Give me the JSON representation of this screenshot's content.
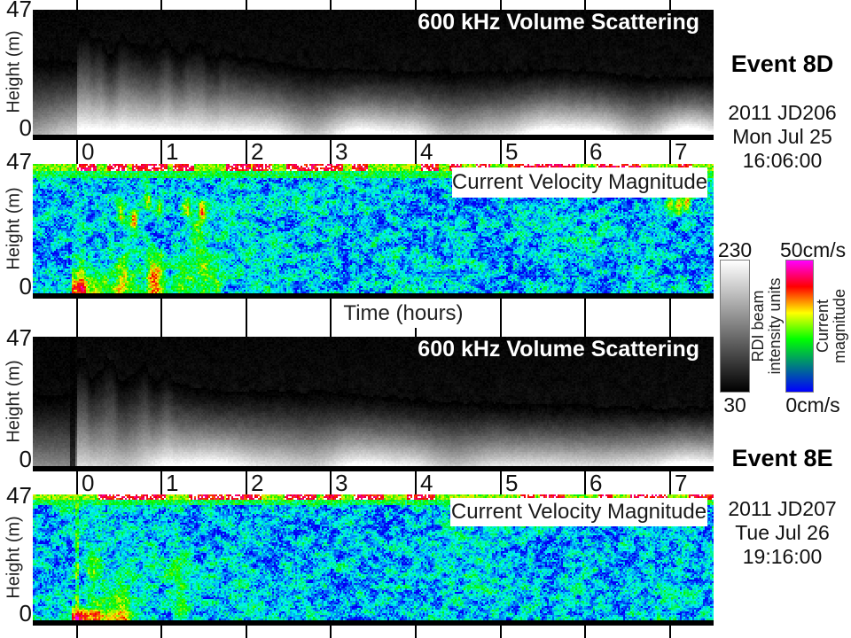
{
  "figure": {
    "axes": {
      "x_label": "Time (hours)",
      "x_ticks": [
        "0",
        "1",
        "2",
        "3",
        "4",
        "5",
        "6",
        "7"
      ],
      "y_label": "Height (m)",
      "y_max": "47",
      "y_min": "0"
    },
    "events": [
      {
        "name": "Event 8D",
        "date_line1": "2011 JD206",
        "date_line2": "Mon Jul 25",
        "date_line3": "16:06:00"
      },
      {
        "name": "Event 8E",
        "date_line1": "2011 JD207",
        "date_line2": "Tue Jul 26",
        "date_line3": "19:16:00"
      }
    ],
    "colorbars": {
      "intensity": {
        "max_label": "230",
        "min_label": "30",
        "label_line1": "RDI beam",
        "label_line2": "intensity units",
        "gradient_stops": [
          [
            "#000000",
            0
          ],
          [
            "#ffffff",
            100
          ]
        ]
      },
      "velocity": {
        "max_label": "50cm/s",
        "min_label": "0cm/s",
        "label_line1": "Current",
        "label_line2": "magnitude",
        "gradient_stops": [
          [
            "#0000ff",
            0
          ],
          [
            "#00ff00",
            40
          ],
          [
            "#ffff00",
            60
          ],
          [
            "#ff0000",
            80
          ],
          [
            "#ff00ff",
            100
          ]
        ]
      }
    }
  },
  "chart_data": [
    {
      "id": "event8d-volume-scattering",
      "type": "heatmap",
      "title": "600 kHz Volume Scattering",
      "event": "Event 8D",
      "x": {
        "label": "Time (hours)",
        "ticks": [
          0,
          1,
          2,
          3,
          4,
          5,
          6,
          7
        ],
        "range": [
          -0.5,
          7.5
        ]
      },
      "y": {
        "label": "Height (m)",
        "ticks": [
          0,
          47
        ],
        "range": [
          0,
          47
        ]
      },
      "z": {
        "label": "RDI beam intensity units",
        "min": 30,
        "max": 230,
        "colormap": "grayscale"
      },
      "description": "Grayscale echogram; dark above scattering layer, bright near bottom; strong ragged backscatter plumes rise after event onset at hour 0 through ~2.7, layer thins toward hour 7 with a bump near hour 5.8.",
      "features": {
        "pre_top": 0.4,
        "pre_gain": 0.8,
        "plume_end": 2.7,
        "plume_peak_hour": 1.05,
        "plume_height": 0.26,
        "onset_spike_hour": 0.07,
        "post_top_start": 0.4,
        "post_top_end": 0.54,
        "bump_hour": 5.8,
        "bump_width": 0.55,
        "bump_depth": 0.05,
        "bottom_glow": 0.95
      }
    },
    {
      "id": "event8d-current-velocity",
      "type": "heatmap",
      "title": "Current Velocity Magnitude",
      "event": "Event 8D",
      "x": {
        "label": "Time (hours)",
        "ticks": [
          0,
          1,
          2,
          3,
          4,
          5,
          6,
          7
        ],
        "range": [
          -0.5,
          7.5
        ]
      },
      "y": {
        "label": "Height (m)",
        "ticks": [
          0,
          47
        ],
        "range": [
          0,
          47
        ]
      },
      "z": {
        "label": "Current magnitude",
        "min": 0,
        "max": 50,
        "units": "cm/s",
        "colormap": "blue-green-yellow-red-magenta"
      },
      "description": "Speckled blue/green field; red-white surface band at top; yellow-orange high-velocity wedge near bottom at hours 0-1.3; short yellow/red streaks at mid-height hours 0.5-1.5 and near hour 7.1.",
      "features": {
        "surf_frac": 0.05,
        "surf_pre": 0.45,
        "col_u0": 0.0,
        "col_u1": 1.9,
        "col_amp": 0.26,
        "col_top": 0.3,
        "w_u0": 0.0,
        "w_u1": 1.3,
        "w_amp": 0.5,
        "w_sig": 0.13,
        "hs_amp": 0.42,
        "hotspots": [
          [
            0.52,
            0.38
          ],
          [
            0.68,
            0.42
          ],
          [
            0.84,
            0.3
          ],
          [
            0.98,
            0.35
          ],
          [
            1.3,
            0.34
          ],
          [
            1.48,
            0.36
          ],
          [
            7.0,
            0.3
          ],
          [
            7.1,
            0.33
          ],
          [
            7.2,
            0.3
          ]
        ]
      }
    },
    {
      "id": "event8e-volume-scattering",
      "type": "heatmap",
      "title": "600 kHz Volume Scattering",
      "event": "Event 8E",
      "x": {
        "label": "Time (hours)",
        "ticks": [
          0,
          1,
          2,
          3,
          4,
          5,
          6,
          7
        ],
        "range": [
          -0.5,
          7.5
        ]
      },
      "y": {
        "label": "Height (m)",
        "ticks": [
          0,
          47
        ],
        "range": [
          0,
          47
        ]
      },
      "z": {
        "label": "RDI beam intensity units",
        "min": 30,
        "max": 230,
        "colormap": "grayscale"
      },
      "description": "Grayscale echogram; dim gray pre-event layer, dark slit just before hour 0, then bright white bottom layer with plumes to mid-height through ~hour 1.7, smooth gradient after with slight rise near hour 2.6.",
      "features": {
        "pre_top": 0.45,
        "pre_gain": 0.62,
        "plume_end": 1.7,
        "plume_peak_hour": 0.45,
        "plume_height": 0.3,
        "onset_spike_hour": 0.06,
        "post_top_start": 0.42,
        "post_top_end": 0.54,
        "bump_hour": 2.6,
        "bump_width": 0.9,
        "bump_depth": 0.05,
        "bottom_glow": 1.0,
        "dark_slit_hour": -0.05
      }
    },
    {
      "id": "event8e-current-velocity",
      "type": "heatmap",
      "title": "Current Velocity Magnitude",
      "event": "Event 8E",
      "x": {
        "label": "Time (hours)",
        "ticks": [
          0,
          1,
          2,
          3,
          4,
          5,
          6,
          7
        ],
        "range": [
          -0.5,
          7.5
        ]
      },
      "y": {
        "label": "Height (m)",
        "ticks": [
          0,
          47
        ],
        "range": [
          0,
          47
        ]
      },
      "z": {
        "label": "Current magnitude",
        "min": 0,
        "max": 50,
        "units": "cm/s",
        "colormap": "blue-green-yellow-red-magenta"
      },
      "description": "Speckled blue/green field; thin red/yellow surface line; strong red-orange near-bottom jet at hours 0-1 fading to yellow-green; vertical onset line at hour 0.",
      "features": {
        "surf_frac": 0.04,
        "surf_pre": 0.7,
        "col_u0": 0.05,
        "col_u1": 1.5,
        "col_amp": 0.2,
        "col_top": 0.45,
        "w_u0": 0.0,
        "w_u1": 1.0,
        "w_amp": 0.65,
        "w_sig": 0.07,
        "hs_amp": 0,
        "hotspots": [],
        "line_u": 0.0
      }
    }
  ]
}
